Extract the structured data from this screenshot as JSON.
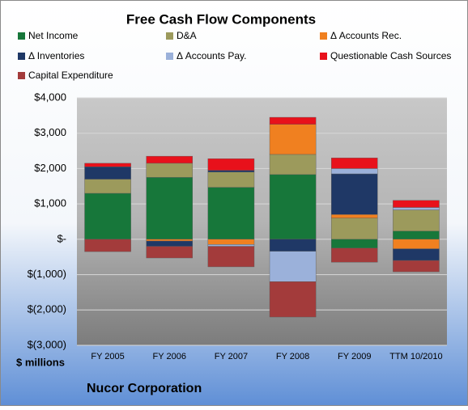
{
  "chart_data": {
    "type": "stacked-bar",
    "title": "Free Cash Flow Components",
    "y_axis_label": "$ millions",
    "company": "Nucor Corporation",
    "categories": [
      "FY 2005",
      "FY 2006",
      "FY 2007",
      "FY 2008",
      "FY 2009",
      "TTM 10/2010"
    ],
    "series": [
      {
        "name": "Net Income",
        "color": "#17773a",
        "values": [
          1300,
          1750,
          1470,
          1830,
          -250,
          230
        ]
      },
      {
        "name": "D&A",
        "color": "#9c9a5c",
        "values": [
          400,
          400,
          430,
          570,
          600,
          600
        ]
      },
      {
        "name": "Δ Accounts Rec.",
        "color": "#f08020",
        "values": [
          0,
          -50,
          -150,
          850,
          100,
          -270
        ]
      },
      {
        "name": "Δ Inventories",
        "color": "#1f3866",
        "values": [
          350,
          -150,
          50,
          -340,
          1150,
          -330
        ]
      },
      {
        "name": "Δ Accounts Pay.",
        "color": "#9bb1da",
        "values": [
          0,
          0,
          -50,
          -860,
          150,
          70
        ]
      },
      {
        "name": "Questionable Cash Sources",
        "color": "#e8111b",
        "values": [
          100,
          200,
          330,
          200,
          300,
          200
        ]
      },
      {
        "name": "Capital Expenditure",
        "color": "#a33b3b",
        "values": [
          -350,
          -330,
          -580,
          -1000,
          -400,
          -320
        ]
      }
    ],
    "ylim": [
      -3000,
      4000
    ],
    "yticks": [
      {
        "value": -3000,
        "label": "$(3,000)"
      },
      {
        "value": -2000,
        "label": "$(2,000)"
      },
      {
        "value": -1000,
        "label": "$(1,000)"
      },
      {
        "value": 0,
        "label": "$-"
      },
      {
        "value": 1000,
        "label": "$1,000"
      },
      {
        "value": 2000,
        "label": "$2,000"
      },
      {
        "value": 3000,
        "label": "$3,000"
      },
      {
        "value": 4000,
        "label": "$4,000"
      }
    ],
    "grid": true
  }
}
